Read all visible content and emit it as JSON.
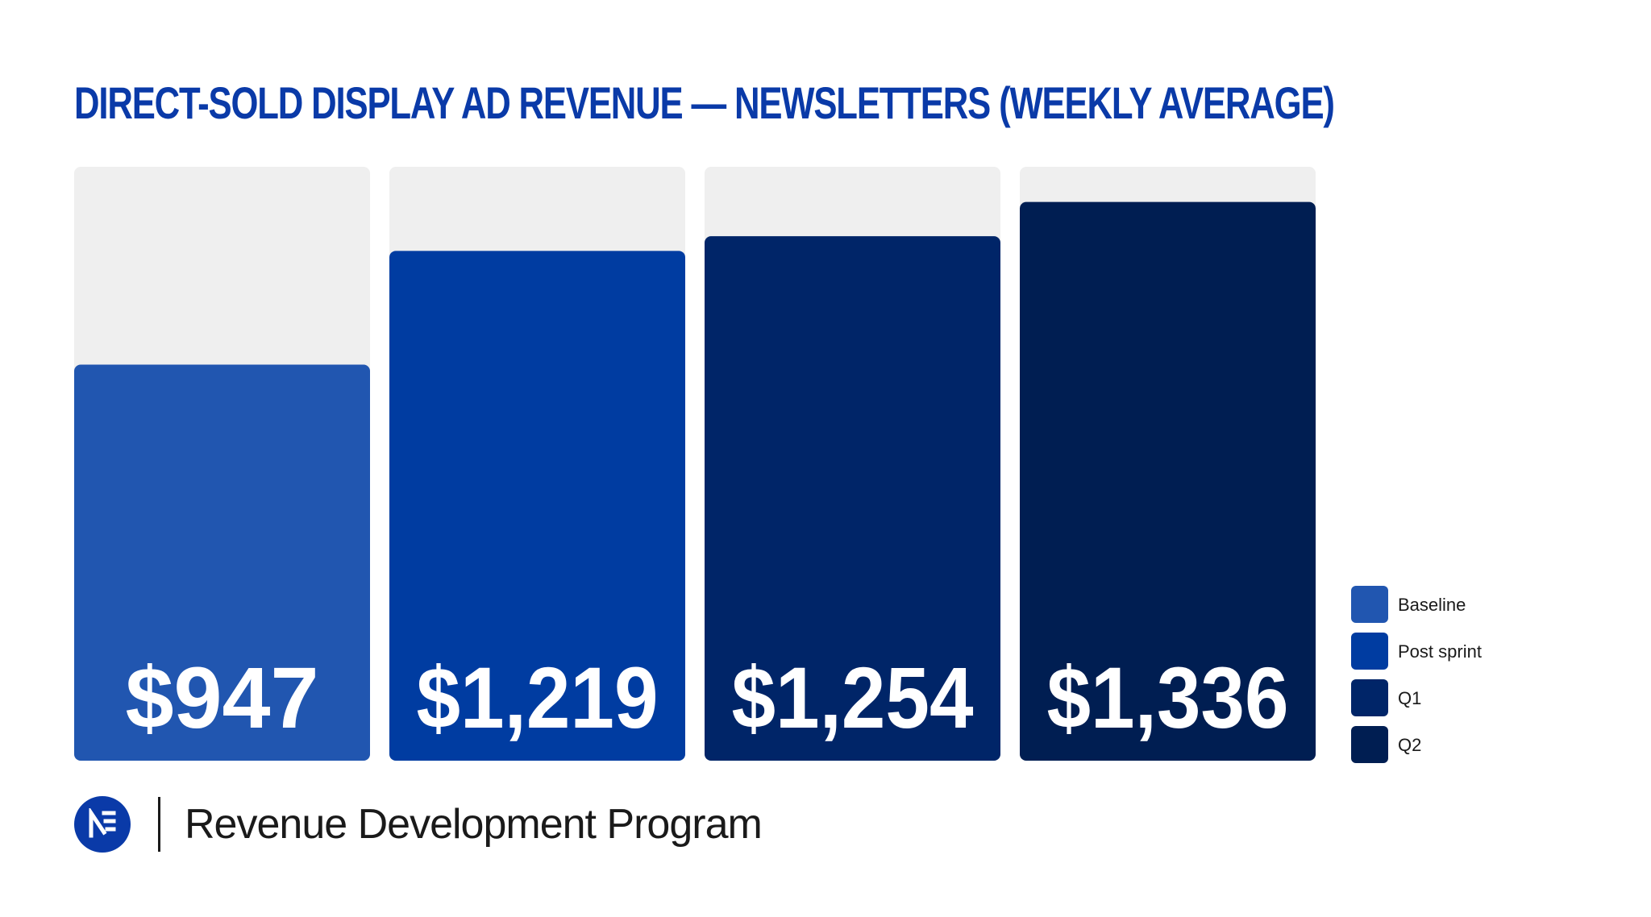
{
  "chart_data": {
    "type": "bar",
    "title": "DIRECT-SOLD DISPLAY AD REVENUE — NEWSLETTERS (WEEKLY AVERAGE)",
    "categories": [
      "Baseline",
      "Post sprint",
      "Q1",
      "Q2"
    ],
    "values": [
      947,
      1219,
      1254,
      1336
    ],
    "value_labels": [
      "$947",
      "$1,219",
      "$1,254",
      "$1,336"
    ],
    "colors": [
      "#2156b0",
      "#003ca1",
      "#002568",
      "#001e52"
    ],
    "track_color": "#efefef",
    "ylim": [
      0,
      1420
    ],
    "xlabel": "",
    "ylabel": "",
    "grid": false,
    "legend": {
      "position": "right",
      "entries": [
        "Baseline",
        "Post sprint",
        "Q1",
        "Q2"
      ]
    }
  },
  "footer": {
    "logo_icon": "newsroom-logo-icon",
    "program_name": "Revenue Development Program"
  }
}
